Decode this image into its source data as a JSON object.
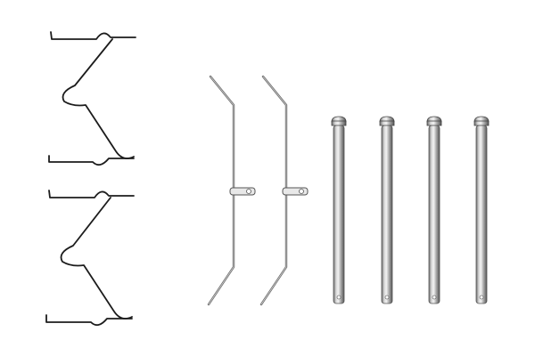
{
  "scene": {
    "background": "#ffffff",
    "wire_color": "#1a1a1a",
    "metal_dark": "#5a5a5a",
    "metal_mid": "#9a9a9a",
    "metal_light": "#e6e6e6",
    "items": [
      {
        "kind": "anti-rattle-spring",
        "count": 2
      },
      {
        "kind": "retaining-clip",
        "count": 2
      },
      {
        "kind": "guide-pin",
        "count": 4
      }
    ]
  }
}
